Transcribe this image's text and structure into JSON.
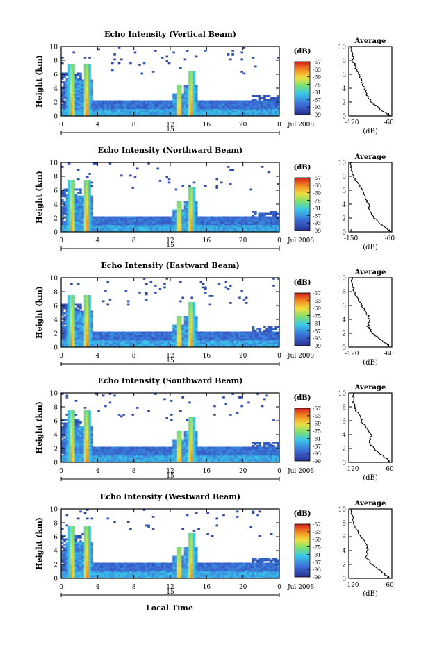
{
  "figure": {
    "xlabel_bottom": "Local Time"
  },
  "panel_common": {
    "ylabel": "Height (km)",
    "x_ticks": [
      "0",
      "4",
      "8",
      "12",
      "16",
      "20",
      "0"
    ],
    "y_ticks": [
      "0",
      "2",
      "4",
      "6",
      "8",
      "10"
    ],
    "date_center": "15",
    "date_label": "Jul 2008",
    "colorbar_title": "(dB)",
    "colorbar_ticks": [
      "-57",
      "-63",
      "-69",
      "-75",
      "-81",
      "-87",
      "-93",
      "-99"
    ],
    "avg_title": "Average",
    "avg_xlabel": "(dB)"
  },
  "chart_data": [
    {
      "type": "heatmap",
      "title": "Echo Intensity (Vertical Beam)",
      "xlabel": "",
      "ylabel": "Height (km)",
      "xlim": [
        0,
        24
      ],
      "ylim": [
        0,
        10
      ],
      "colorbar": {
        "label": "(dB)",
        "range": [
          -99,
          -57
        ]
      },
      "rain_events_hours": [
        1.2,
        2.8,
        13.0,
        14.3
      ],
      "average_profile": {
        "title": "Average",
        "xlabel": "(dB)",
        "x_ticks": [
          "-120",
          "-60"
        ],
        "xlim": [
          -125,
          -55
        ],
        "height_km": [
          0,
          1,
          2,
          3,
          4,
          5,
          6,
          7,
          8,
          9,
          10
        ],
        "db": [
          -58,
          -74,
          -88,
          -96,
          -100,
          -104,
          -108,
          -114,
          -118,
          -120,
          -120
        ]
      }
    },
    {
      "type": "heatmap",
      "title": "Echo Intensity (Northward Beam)",
      "xlabel": "",
      "ylabel": "Height (km)",
      "xlim": [
        0,
        24
      ],
      "ylim": [
        0,
        10
      ],
      "colorbar": {
        "label": "(dB)",
        "range": [
          -99,
          -57
        ]
      },
      "rain_events_hours": [
        1.2,
        2.8,
        13.0,
        14.3
      ],
      "average_profile": {
        "title": "Average",
        "xlabel": "(dB)",
        "x_ticks": [
          "-150",
          "-60"
        ],
        "xlim": [
          -155,
          -55
        ],
        "height_km": [
          0,
          1,
          2,
          3,
          4,
          5,
          6,
          7,
          8,
          9,
          10
        ],
        "db": [
          -58,
          -78,
          -96,
          -106,
          -110,
          -116,
          -124,
          -134,
          -144,
          -150,
          -150
        ]
      }
    },
    {
      "type": "heatmap",
      "title": "Echo Intensity (Eastward Beam)",
      "xlabel": "",
      "ylabel": "Height (km)",
      "xlim": [
        0,
        24
      ],
      "ylim": [
        0,
        10
      ],
      "colorbar": {
        "label": "(dB)",
        "range": [
          -99,
          -57
        ]
      },
      "rain_events_hours": [
        1.2,
        2.8,
        13.0,
        14.3
      ],
      "average_profile": {
        "title": "Average",
        "xlabel": "(dB)",
        "x_ticks": [
          "-120",
          "-60"
        ],
        "xlim": [
          -125,
          -55
        ],
        "height_km": [
          0,
          1,
          2,
          3,
          4,
          5,
          6,
          7,
          8,
          9,
          10
        ],
        "db": [
          -58,
          -72,
          -86,
          -94,
          -92,
          -96,
          -104,
          -110,
          -116,
          -120,
          -120
        ]
      }
    },
    {
      "type": "heatmap",
      "title": "Echo Intensity (Southward Beam)",
      "xlabel": "",
      "ylabel": "Height (km)",
      "xlim": [
        0,
        24
      ],
      "ylim": [
        0,
        10
      ],
      "colorbar": {
        "label": "(dB)",
        "range": [
          -99,
          -57
        ]
      },
      "rain_events_hours": [
        1.2,
        2.8,
        13.0,
        14.3
      ],
      "average_profile": {
        "title": "Average",
        "xlabel": "(dB)",
        "x_ticks": [
          "-120",
          "-60"
        ],
        "xlim": [
          -125,
          -55
        ],
        "height_km": [
          0,
          1,
          2,
          3,
          4,
          5,
          6,
          7,
          8,
          9,
          10
        ],
        "db": [
          -58,
          -70,
          -84,
          -92,
          -88,
          -96,
          -104,
          -110,
          -116,
          -118,
          -118
        ]
      }
    },
    {
      "type": "heatmap",
      "title": "Echo Intensity (Westward Beam)",
      "xlabel": "Local Time",
      "ylabel": "Height (km)",
      "xlim": [
        0,
        24
      ],
      "ylim": [
        0,
        10
      ],
      "colorbar": {
        "label": "(dB)",
        "range": [
          -99,
          -57
        ]
      },
      "rain_events_hours": [
        1.2,
        2.8,
        13.0,
        14.3
      ],
      "average_profile": {
        "title": "Average",
        "xlabel": "(dB)",
        "x_ticks": [
          "-120",
          "-60"
        ],
        "xlim": [
          -125,
          -55
        ],
        "height_km": [
          0,
          1,
          2,
          3,
          4,
          5,
          6,
          7,
          8,
          9,
          10
        ],
        "db": [
          -58,
          -72,
          -88,
          -96,
          -94,
          -98,
          -106,
          -112,
          -118,
          -120,
          -120
        ]
      }
    }
  ]
}
